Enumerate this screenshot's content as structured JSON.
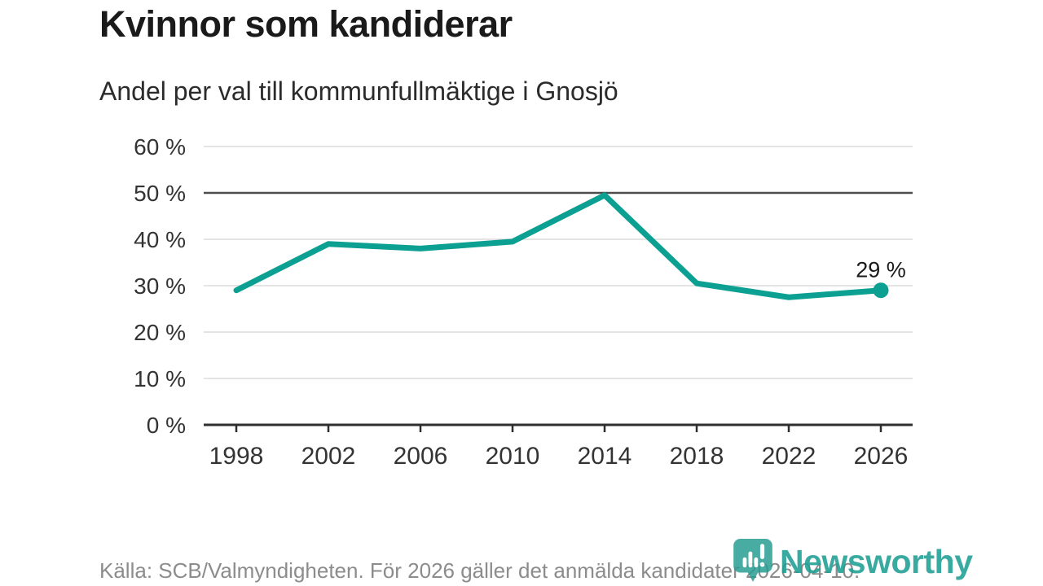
{
  "chart_data": {
    "type": "line",
    "title": "Kvinnor som kandiderar",
    "subtitle": "Andel per val till kommunfullmäktige i Gnosjö",
    "categories": [
      "1998",
      "2002",
      "2006",
      "2010",
      "2014",
      "2018",
      "2022",
      "2026"
    ],
    "values": [
      29,
      39,
      38,
      39.5,
      49.5,
      30.5,
      27.5,
      29
    ],
    "unit": "%",
    "ylim": [
      0,
      60
    ],
    "yticks": [
      0,
      10,
      20,
      30,
      40,
      50,
      60
    ],
    "ytick_labels": [
      "0 %",
      "10 %",
      "20 %",
      "30 %",
      "40 %",
      "50 %",
      "60 %"
    ],
    "reference_line": 50,
    "grid": true,
    "legend": "none",
    "last_value_label": "29 %",
    "colors": {
      "line": "#0ca092",
      "grid": "#dcdcdc",
      "reference_line": "#4d4d4d",
      "axis": "#2e2e2e",
      "tick_label": "#333333",
      "annotation": "#1a1a1a"
    }
  },
  "footer": {
    "source": "Källa: SCB/Valmyndigheten. För 2026 gäller det anmälda kandidater 2026-04-10.",
    "logo_text": "Newsworthy"
  },
  "icons": {
    "logo_icon": "newsworthy-pin-barchart-icon"
  }
}
